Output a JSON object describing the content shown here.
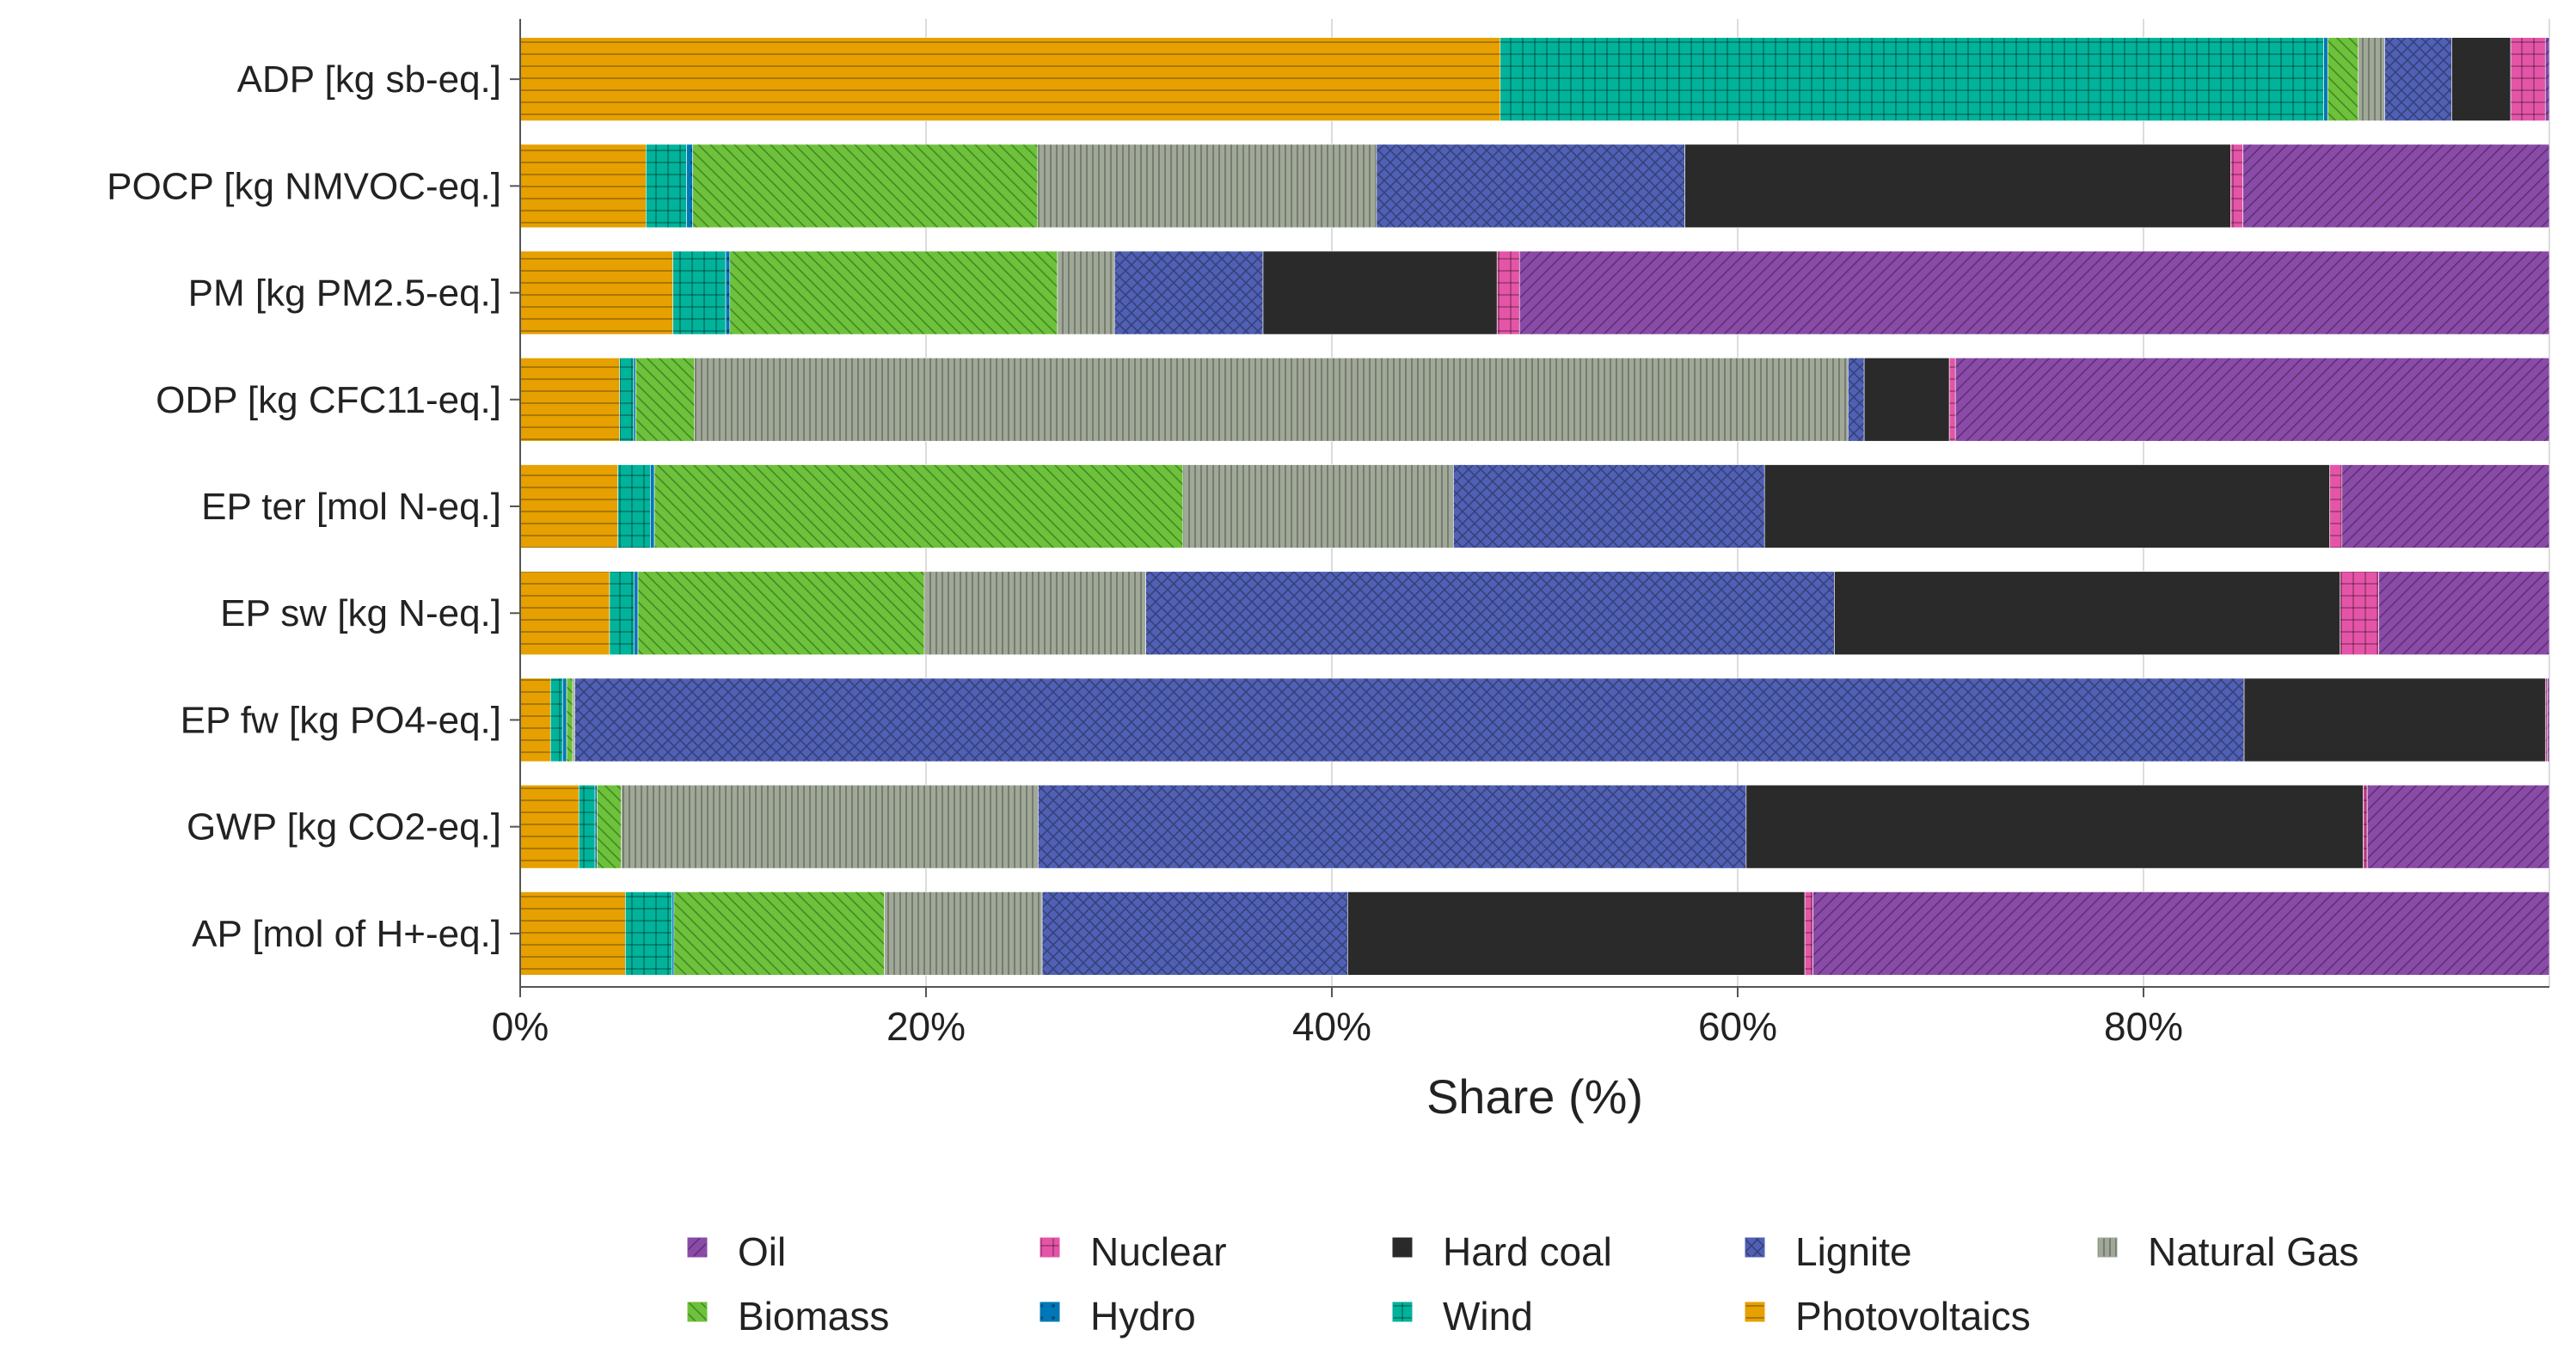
{
  "chart_data": {
    "type": "bar",
    "orientation": "horizontal",
    "stacked": true,
    "title": "",
    "xlabel": "Share (%)",
    "ylabel": "",
    "xlim": [
      0,
      100
    ],
    "xticks": [
      "0%",
      "20%",
      "40%",
      "60%",
      "80%"
    ],
    "grid": true,
    "legend_position": "bottom",
    "categories": [
      "ADP [kg sb-eq.]",
      "POCP [kg NMVOC-eq.]",
      "PM [kg PM2.5-eq.]",
      "ODP [kg CFC11-eq.]",
      "EP ter [mol N-eq.]",
      "EP sw [kg N-eq.]",
      "EP fw [kg PO4-eq.]",
      "GWP [kg CO2-eq.]",
      "AP [mol of H+-eq.]"
    ],
    "series": [
      {
        "name": "Photovoltaics",
        "color": "#E6A000",
        "pattern": "hlines",
        "values": [
          48.2,
          6.2,
          7.5,
          4.9,
          4.8,
          4.4,
          1.5,
          2.9,
          5.2
        ]
      },
      {
        "name": "Wind",
        "color": "#00B39A",
        "pattern": "grid",
        "values": [
          40.5,
          2.0,
          2.6,
          0.7,
          1.6,
          1.2,
          0.6,
          0.8,
          2.3
        ]
      },
      {
        "name": "Hydro",
        "color": "#0077B6",
        "pattern": "dots",
        "values": [
          0.2,
          0.3,
          0.2,
          0.1,
          0.2,
          0.2,
          0.2,
          0.1,
          0.1
        ]
      },
      {
        "name": "Biomass",
        "color": "#6CC23A",
        "pattern": "diag",
        "values": [
          1.5,
          17.0,
          16.1,
          2.9,
          26.0,
          14.1,
          0.3,
          1.2,
          10.4
        ]
      },
      {
        "name": "Natural Gas",
        "color": "#A0A898",
        "pattern": "vlines",
        "values": [
          1.3,
          16.7,
          2.8,
          56.9,
          13.3,
          10.9,
          0.1,
          20.6,
          7.8
        ]
      },
      {
        "name": "Lignite",
        "color": "#5060B4",
        "pattern": "cross",
        "values": [
          3.3,
          15.2,
          7.3,
          0.8,
          15.3,
          33.9,
          82.6,
          35.0,
          15.1
        ]
      },
      {
        "name": "Hard coal",
        "color": "#2A2A2A",
        "pattern": "none",
        "values": [
          2.9,
          26.9,
          11.5,
          4.2,
          27.8,
          24.9,
          14.9,
          30.5,
          22.6
        ]
      },
      {
        "name": "Nuclear",
        "color": "#E455A8",
        "pattern": "grid",
        "values": [
          1.7,
          0.6,
          1.1,
          0.3,
          0.6,
          1.9,
          0.1,
          0.2,
          0.4
        ]
      },
      {
        "name": "Oil",
        "color": "#8A4AA8",
        "pattern": "diagback",
        "values": [
          0.2,
          15.1,
          50.6,
          29.3,
          10.2,
          8.4,
          0.1,
          9.0,
          36.4
        ]
      }
    ],
    "legend": [
      "Oil",
      "Nuclear",
      "Hard coal",
      "Lignite",
      "Natural Gas",
      "Biomass",
      "Hydro",
      "Wind",
      "Photovoltaics"
    ]
  }
}
